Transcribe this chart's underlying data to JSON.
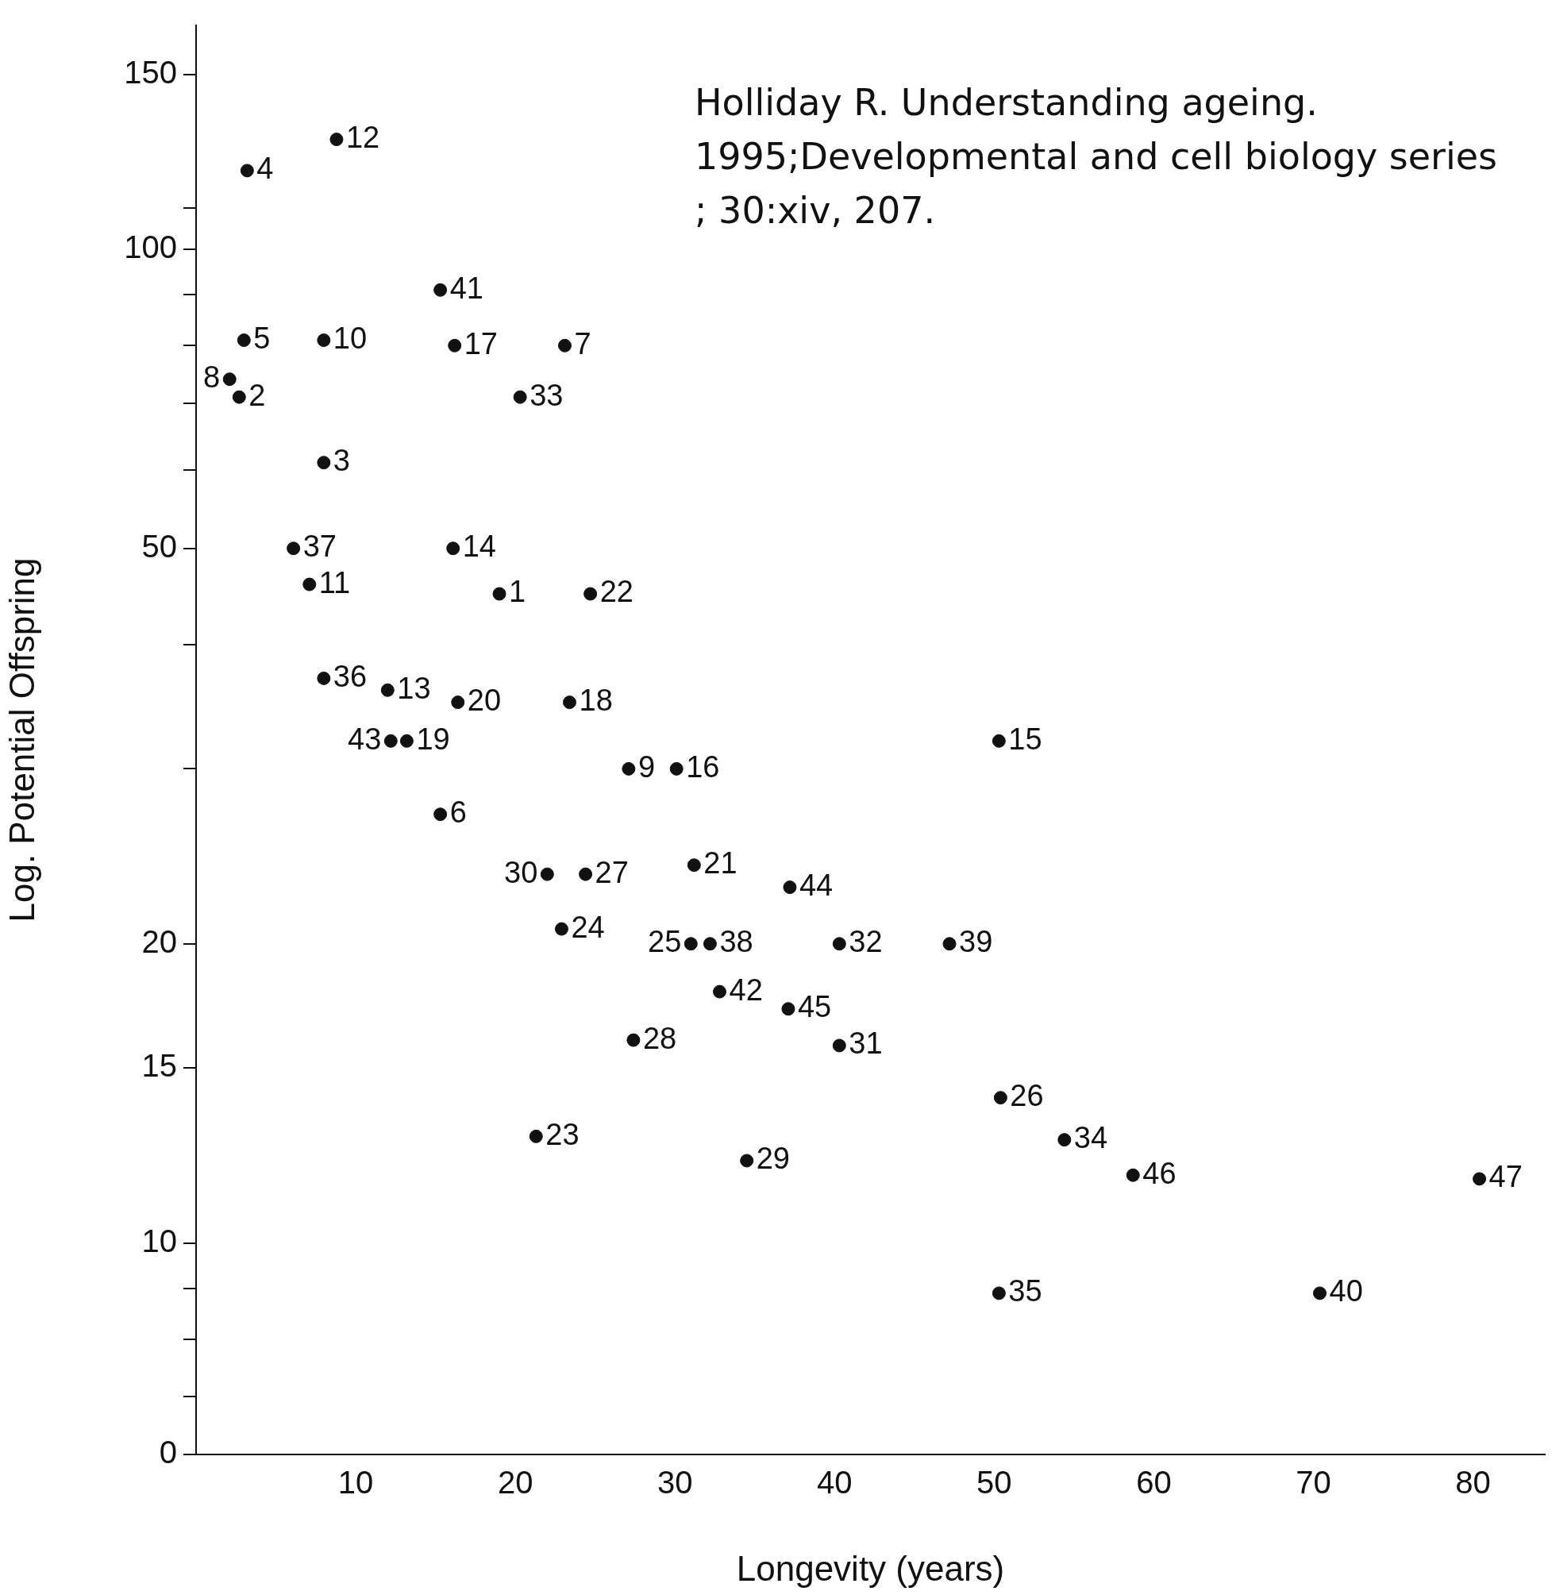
{
  "chart_data": {
    "type": "scatter",
    "xlabel": "Longevity (years)",
    "ylabel": "Log. Potential Offspring",
    "annotations": [
      "Holliday R. Understanding ageing. 1995;Developmental and cell biology series ; 30:xiv, 207.",
      {
        "text": "4",
        "x": 3.2,
        "y": 120
      },
      {
        "text": "12",
        "x": 8.8,
        "y": 129
      },
      {
        "text": "41",
        "x": 15.3,
        "y": 91
      },
      {
        "text": "5",
        "x": 3.0,
        "y": 81
      },
      {
        "text": "10",
        "x": 8.0,
        "y": 81
      },
      {
        "text": "17",
        "x": 16.2,
        "y": 80
      },
      {
        "text": "7",
        "x": 23.1,
        "y": 80
      },
      {
        "text": "8",
        "x": 2.1,
        "y": 74
      },
      {
        "text": "2",
        "x": 2.7,
        "y": 71
      },
      {
        "text": "33",
        "x": 20.3,
        "y": 71
      },
      {
        "text": "3",
        "x": 8.0,
        "y": 61
      },
      {
        "text": "37",
        "x": 6.1,
        "y": 50
      },
      {
        "text": "14",
        "x": 16.1,
        "y": 50
      },
      {
        "text": "11",
        "x": 7.1,
        "y": 46
      },
      {
        "text": "1",
        "x": 19.0,
        "y": 45
      },
      {
        "text": "22",
        "x": 24.7,
        "y": 45
      },
      {
        "text": "36",
        "x": 8.0,
        "y": 37
      },
      {
        "text": "13",
        "x": 12.0,
        "y": 36
      },
      {
        "text": "20",
        "x": 16.4,
        "y": 35
      },
      {
        "text": "18",
        "x": 23.4,
        "y": 35
      },
      {
        "text": "43",
        "x": 12.2,
        "y": 32
      },
      {
        "text": "19",
        "x": 13.2,
        "y": 32
      },
      {
        "text": "15",
        "x": 50.3,
        "y": 32
      },
      {
        "text": "9",
        "x": 27.1,
        "y": 30
      },
      {
        "text": "16",
        "x": 30.1,
        "y": 30
      },
      {
        "text": "6",
        "x": 15.3,
        "y": 27
      },
      {
        "text": "30",
        "x": 22.0,
        "y": 23.5
      },
      {
        "text": "27",
        "x": 24.4,
        "y": 23.5
      },
      {
        "text": "21",
        "x": 31.2,
        "y": 24
      },
      {
        "text": "44",
        "x": 37.2,
        "y": 22.8
      },
      {
        "text": "24",
        "x": 22.9,
        "y": 20.7
      },
      {
        "text": "25",
        "x": 31.0,
        "y": 20
      },
      {
        "text": "38",
        "x": 32.2,
        "y": 20
      },
      {
        "text": "32",
        "x": 40.3,
        "y": 20
      },
      {
        "text": "39",
        "x": 47.2,
        "y": 20
      },
      {
        "text": "42",
        "x": 32.8,
        "y": 17.9
      },
      {
        "text": "45",
        "x": 37.1,
        "y": 17.2
      },
      {
        "text": "28",
        "x": 27.4,
        "y": 16
      },
      {
        "text": "31",
        "x": 40.3,
        "y": 15.8
      },
      {
        "text": "26",
        "x": 50.4,
        "y": 14
      },
      {
        "text": "23",
        "x": 21.3,
        "y": 12.8
      },
      {
        "text": "34",
        "x": 54.4,
        "y": 12.7
      },
      {
        "text": "29",
        "x": 34.5,
        "y": 12.1
      },
      {
        "text": "46",
        "x": 58.7,
        "y": 11.7
      },
      {
        "text": "47",
        "x": 80.4,
        "y": 11.6
      },
      {
        "text": "35",
        "x": 50.3,
        "y": 8.9
      },
      {
        "text": "40",
        "x": 70.4,
        "y": 8.9
      }
    ],
    "x": [
      3.2,
      8.8,
      15.3,
      3.0,
      8.0,
      16.2,
      23.1,
      2.1,
      2.7,
      20.3,
      8.0,
      6.1,
      16.1,
      7.1,
      19.0,
      24.7,
      8.0,
      12.0,
      16.4,
      23.4,
      12.2,
      13.2,
      50.3,
      27.1,
      30.1,
      15.3,
      22.0,
      24.4,
      31.2,
      37.2,
      22.9,
      31.0,
      32.2,
      40.3,
      47.2,
      32.8,
      37.1,
      27.4,
      40.3,
      50.4,
      21.3,
      54.4,
      34.5,
      58.7,
      80.4,
      50.3,
      70.4
    ],
    "values": [
      120,
      129,
      91,
      81,
      81,
      80,
      80,
      74,
      71,
      71,
      61,
      50,
      50,
      46,
      45,
      45,
      37,
      36,
      35,
      35,
      32,
      32,
      32,
      30,
      30,
      27,
      23.5,
      23.5,
      24,
      22.8,
      20.7,
      20,
      20,
      20,
      20,
      17.9,
      17.2,
      16,
      15.8,
      14,
      12.8,
      12.7,
      12.1,
      11.7,
      11.6,
      8.9,
      8.9
    ],
    "color": "#111111",
    "marker": "circle",
    "log": true,
    "grid": false,
    "legend": false,
    "xlim": [
      0,
      84.5
    ],
    "xticks": [
      10,
      20,
      30,
      40,
      50,
      60,
      70,
      80
    ],
    "ylim": [
      0,
      168
    ],
    "yticks": [
      0,
      {
        "value": 7,
        "label": null
      },
      {
        "value": 8,
        "label": null
      },
      {
        "value": 9,
        "label": null
      },
      10,
      15,
      20,
      {
        "value": 30,
        "label": null
      },
      {
        "value": 40,
        "label": null
      },
      50,
      {
        "value": 60,
        "label": null
      },
      {
        "value": 70,
        "label": null
      },
      {
        "value": 80,
        "label": null
      },
      {
        "value": 90,
        "label": null
      },
      100,
      {
        "value": 110,
        "label": null
      },
      150
    ]
  }
}
